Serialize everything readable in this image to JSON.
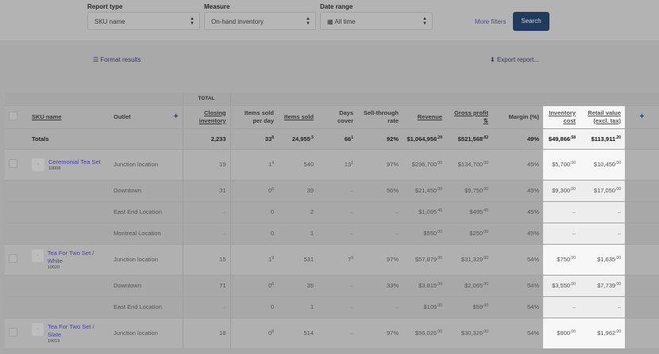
{
  "filters": {
    "report_type": {
      "label": "Report type",
      "value": "SKU name"
    },
    "measure": {
      "label": "Measure",
      "value": "On-hand inventory"
    },
    "date_range": {
      "label": "Date range",
      "value": "All time"
    },
    "more_filters": "More filters",
    "search": "Search"
  },
  "toolbar": {
    "format_results": "Format results",
    "export_report": "Export report..."
  },
  "colors": {
    "accent": "#223a5e",
    "link": "#4a40b0",
    "highlight": "#f7f7f7"
  },
  "table": {
    "group_label": "TOTAL",
    "columns": [
      "SKU name",
      "Outlet",
      "Closing inventory",
      "Items sold per day",
      "Items sold",
      "Days cover",
      "Sell-through rate",
      "Revenue",
      "Gross profit",
      "Margin (%)",
      "Inventory cost",
      "Retail value (excl. tax)"
    ],
    "totals": {
      "label": "Totals",
      "cells": [
        [
          "2,233",
          ""
        ],
        [
          "33",
          "8"
        ],
        [
          "24,955",
          ".5"
        ],
        [
          "66",
          "1"
        ],
        [
          "92%",
          ""
        ],
        [
          "$1,064,956",
          ".29"
        ],
        [
          "$521,568",
          ".82"
        ],
        [
          "49%",
          ""
        ],
        [
          "$49,866",
          ".58"
        ],
        [
          "$113,911",
          ".20"
        ]
      ]
    },
    "rows": [
      {
        "sku": "Ceremonial Tea Set",
        "code": "10008",
        "outlet": "Junction location",
        "cells": [
          [
            "19",
            ""
          ],
          [
            "1",
            "4"
          ],
          [
            "540",
            ""
          ],
          [
            "13",
            "1"
          ],
          [
            "97%",
            ""
          ],
          [
            "$296,700",
            ".00"
          ],
          [
            "$134,700",
            ".00"
          ],
          [
            "45%",
            ""
          ],
          [
            "$5,700",
            ".00"
          ],
          [
            "$10,450",
            ".00"
          ]
        ]
      },
      {
        "outlet": "Downtown",
        "cells": [
          [
            "31",
            ""
          ],
          [
            "0",
            "6"
          ],
          [
            "39",
            ""
          ],
          [
            "–",
            ""
          ],
          [
            "56%",
            ""
          ],
          [
            "$21,450",
            ".00"
          ],
          [
            "$9,750",
            ".00"
          ],
          [
            "45%",
            ""
          ],
          [
            "$9,300",
            ".00"
          ],
          [
            "$17,050",
            ".00"
          ]
        ]
      },
      {
        "outlet": "East End Location",
        "cells": [
          [
            "–",
            ""
          ],
          [
            "0",
            ""
          ],
          [
            "2",
            ""
          ],
          [
            "–",
            ""
          ],
          [
            "–",
            ""
          ],
          [
            "$1,095",
            ".45"
          ],
          [
            "$495",
            ".45"
          ],
          [
            "45%",
            ""
          ],
          [
            "–",
            ""
          ],
          [
            "–",
            ""
          ]
        ]
      },
      {
        "outlet": "Montreal Location",
        "cells": [
          [
            "–",
            ""
          ],
          [
            "0",
            ""
          ],
          [
            "1",
            ""
          ],
          [
            "–",
            ""
          ],
          [
            "–",
            ""
          ],
          [
            "$550",
            ".00"
          ],
          [
            "$250",
            ".00"
          ],
          [
            "45%",
            ""
          ],
          [
            "–",
            ""
          ],
          [
            "–",
            ""
          ]
        ]
      },
      {
        "sku": "Tea For Two Set / White",
        "code": "10020",
        "outlet": "Junction location",
        "cells": [
          [
            "15",
            ""
          ],
          [
            "1",
            "9"
          ],
          [
            "531",
            ""
          ],
          [
            "7",
            "9"
          ],
          [
            "97%",
            ""
          ],
          [
            "$57,879",
            ".00"
          ],
          [
            "$31,329",
            ".00"
          ],
          [
            "54%",
            ""
          ],
          [
            "$750",
            ".00"
          ],
          [
            "$1,635",
            ".00"
          ]
        ]
      },
      {
        "outlet": "Downtown",
        "cells": [
          [
            "71",
            ""
          ],
          [
            "0",
            "6"
          ],
          [
            "35",
            ""
          ],
          [
            "–",
            ""
          ],
          [
            "33%",
            ""
          ],
          [
            "$3,815",
            ".00"
          ],
          [
            "$2,065",
            ".00"
          ],
          [
            "54%",
            ""
          ],
          [
            "$3,550",
            ".00"
          ],
          [
            "$7,739",
            ".00"
          ]
        ]
      },
      {
        "outlet": "East End Location",
        "cells": [
          [
            "–",
            ""
          ],
          [
            "0",
            ""
          ],
          [
            "1",
            ""
          ],
          [
            "–",
            ""
          ],
          [
            "–",
            ""
          ],
          [
            "$109",
            ".00"
          ],
          [
            "$59",
            ".00"
          ],
          [
            "54%",
            ""
          ],
          [
            "–",
            ""
          ],
          [
            "–",
            ""
          ]
        ]
      },
      {
        "sku": "Tea For Two Set / Slate",
        "code": "10019",
        "outlet": "Junction location",
        "cells": [
          [
            "18",
            ""
          ],
          [
            "0",
            "8"
          ],
          [
            "514",
            ""
          ],
          [
            "–",
            ""
          ],
          [
            "97%",
            ""
          ],
          [
            "$56,026",
            ".00"
          ],
          [
            "$30,326",
            ".00"
          ],
          [
            "54%",
            ""
          ],
          [
            "$900",
            ".00"
          ],
          [
            "$1,962",
            ".00"
          ]
        ]
      }
    ]
  }
}
